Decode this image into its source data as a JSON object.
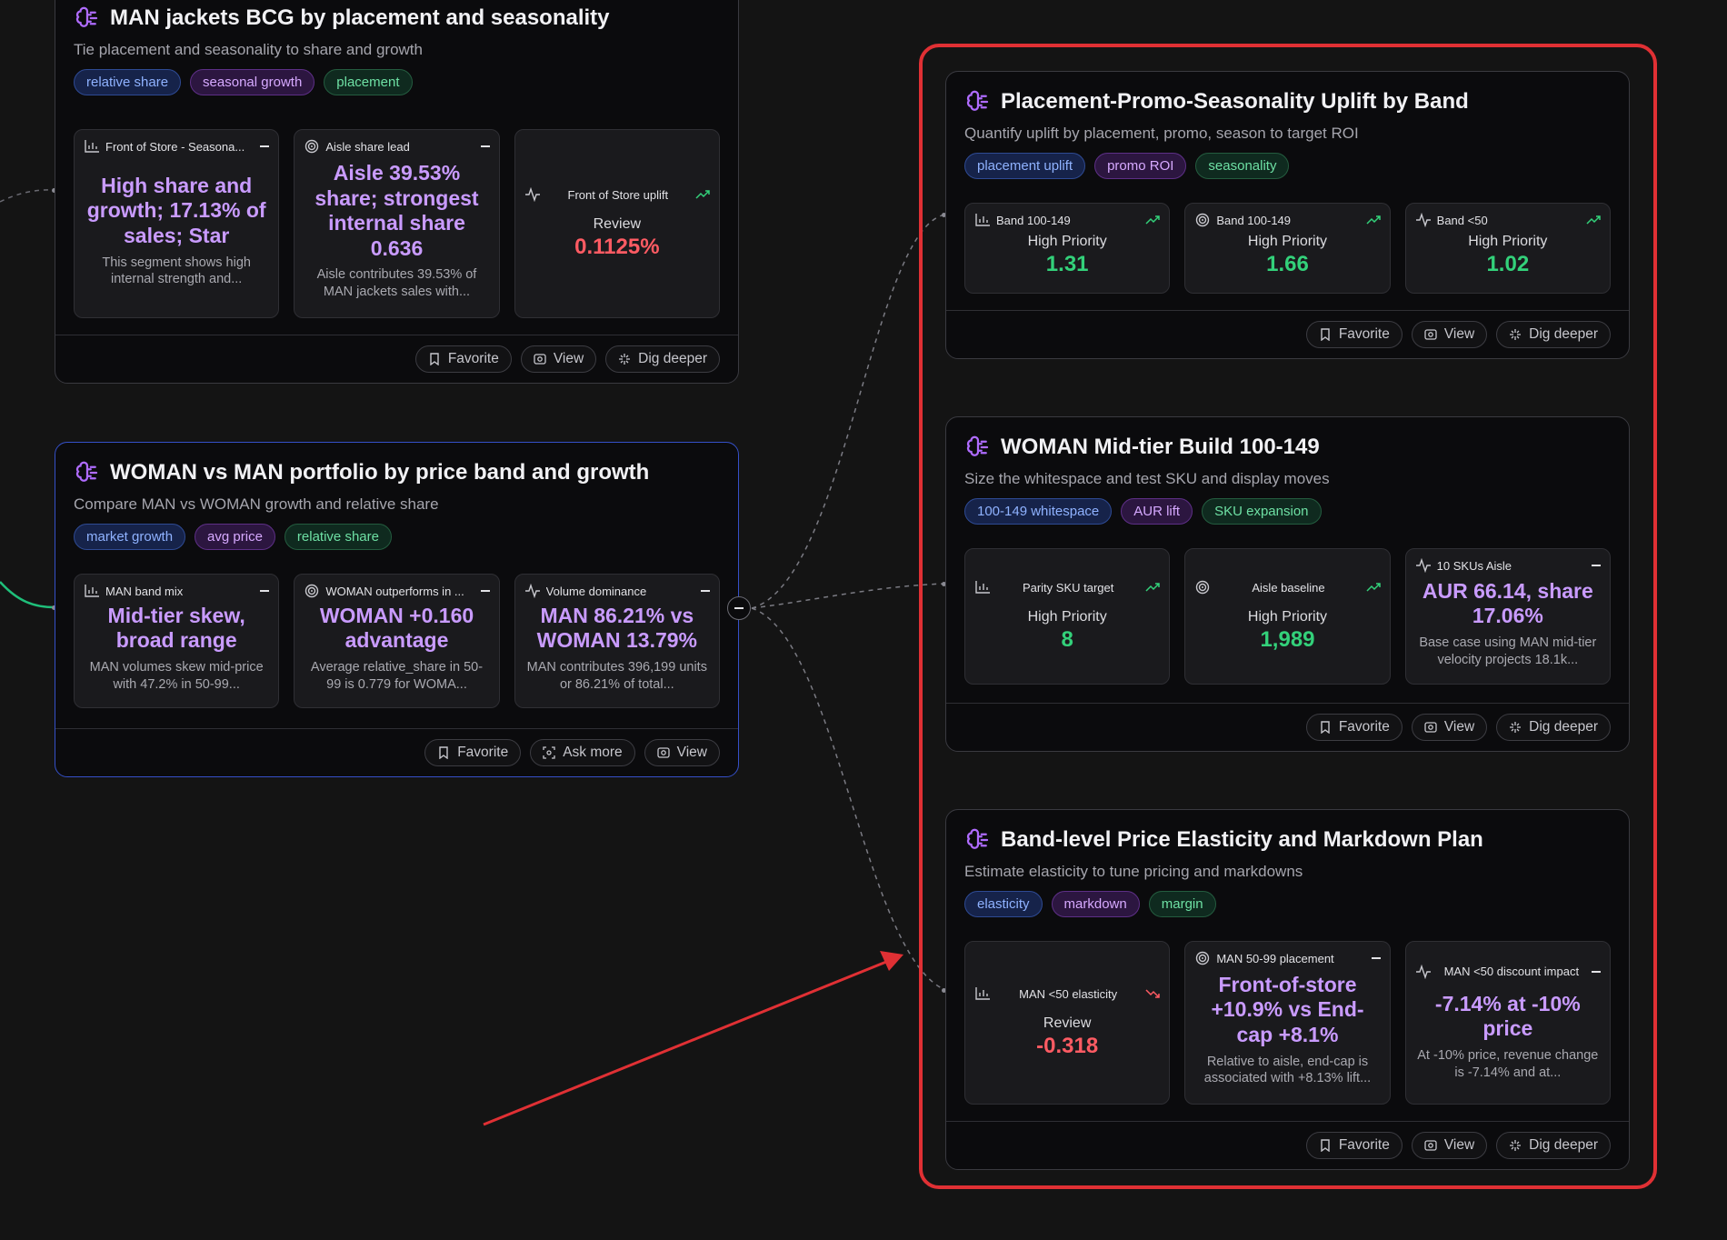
{
  "nodes": {
    "bcg": {
      "title": "MAN jackets BCG by placement and seasonality",
      "subtitle": "Tie placement and seasonality to share and growth",
      "tags": [
        "relative share",
        "seasonal growth",
        "placement"
      ],
      "metrics": [
        {
          "label": "Front of Store - Seasona...",
          "headline": "High share and growth; 17.13% of sales; Star",
          "desc": "This segment shows high internal strength and..."
        },
        {
          "label": "Aisle share lead",
          "headline": "Aisle 39.53% share; strongest internal share 0.636",
          "desc": "Aisle contributes 39.53% of MAN jackets sales with..."
        },
        {
          "label": "Front of Store uplift",
          "status": "Review",
          "value": "0.1125%"
        }
      ],
      "buttons": [
        "Favorite",
        "View",
        "Dig deeper"
      ]
    },
    "portfolio": {
      "title": "WOMAN vs MAN portfolio by price band and growth",
      "subtitle": "Compare MAN vs WOMAN growth and relative share",
      "tags": [
        "market growth",
        "avg price",
        "relative share"
      ],
      "metrics": [
        {
          "label": "MAN band mix",
          "headline": "Mid-tier skew, broad range",
          "desc": "MAN volumes skew mid-price with 47.2% in 50-99..."
        },
        {
          "label": "WOMAN outperforms in ...",
          "headline": "WOMAN +0.160 advantage",
          "desc": "Average relative_share in 50-99 is 0.779 for WOMA..."
        },
        {
          "label": "Volume dominance",
          "headline": "MAN 86.21% vs WOMAN 13.79%",
          "desc": "MAN contributes 396,199 units or 86.21% of total..."
        }
      ],
      "buttons": [
        "Favorite",
        "Ask more",
        "View"
      ]
    },
    "uplift": {
      "title": "Placement-Promo-Seasonality Uplift by Band",
      "subtitle": "Quantify uplift by placement, promo, season to target ROI",
      "tags": [
        "placement uplift",
        "promo ROI",
        "seasonality"
      ],
      "metrics": [
        {
          "label": "Band 100-149",
          "status": "High Priority",
          "value": "1.31"
        },
        {
          "label": "Band 100-149",
          "status": "High Priority",
          "value": "1.66"
        },
        {
          "label": "Band <50",
          "status": "High Priority",
          "value": "1.02"
        }
      ],
      "buttons": [
        "Favorite",
        "View",
        "Dig deeper"
      ]
    },
    "midtier": {
      "title": "WOMAN Mid-tier Build 100-149",
      "subtitle": "Size the whitespace and test SKU and display moves",
      "tags": [
        "100-149 whitespace",
        "AUR lift",
        "SKU expansion"
      ],
      "metrics": [
        {
          "label": "Parity SKU target",
          "status": "High Priority",
          "value": "8"
        },
        {
          "label": "Aisle baseline",
          "status": "High Priority",
          "value": "1,989"
        },
        {
          "label": "10 SKUs Aisle",
          "headline": "AUR 66.14, share 17.06%",
          "desc": "Base case using MAN mid-tier velocity projects 18.1k..."
        }
      ],
      "buttons": [
        "Favorite",
        "View",
        "Dig deeper"
      ]
    },
    "elasticity": {
      "title": "Band-level Price Elasticity and Markdown Plan",
      "subtitle": "Estimate elasticity to tune pricing and markdowns",
      "tags": [
        "elasticity",
        "markdown",
        "margin"
      ],
      "metrics": [
        {
          "label": "MAN <50 elasticity",
          "status": "Review",
          "value": "-0.318"
        },
        {
          "label": "MAN 50-99 placement",
          "headline": "Front-of-store +10.9% vs End-cap +8.1%",
          "desc": "Relative to aisle, end-cap is associated with +8.13% lift..."
        },
        {
          "label": "MAN <50 discount impact",
          "headline": "-7.14% at -10% price",
          "desc": "At -10% price, revenue change is -7.14% and at..."
        }
      ],
      "buttons": [
        "Favorite",
        "View",
        "Dig deeper"
      ]
    }
  },
  "colors": {
    "accent_purple": "#c99bff",
    "positive": "#33d17a",
    "negative": "#ff5b63",
    "highlight": "#e03034",
    "edge_green": "#1fbf7a"
  }
}
